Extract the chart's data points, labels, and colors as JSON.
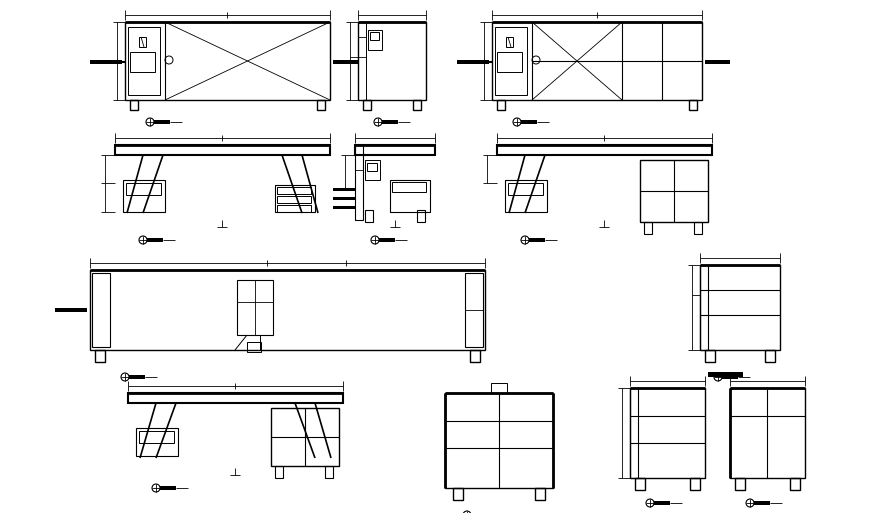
{
  "bg_color": "#ffffff",
  "line_color": "#000000",
  "fig_width": 8.96,
  "fig_height": 5.13,
  "dpi": 100
}
